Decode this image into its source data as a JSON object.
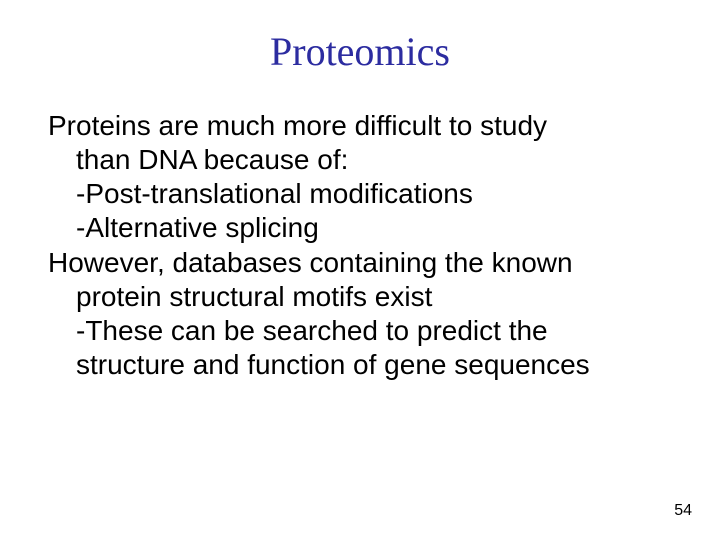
{
  "slide": {
    "title": "Proteomics",
    "title_color": "#2c2ca0",
    "title_fontsize": 40,
    "body_fontsize": 28,
    "body_color": "#000000",
    "background_color": "#ffffff",
    "lines": {
      "l1": "Proteins are much more difficult to study",
      "l2": "than DNA because of:",
      "l3": "-Post-translational modifications",
      "l4": "-Alternative splicing",
      "l5": "However, databases containing the known",
      "l6": "protein structural motifs exist",
      "l7": "-These can be searched to predict the",
      "l8": "structure and function of gene sequences"
    },
    "page_number": "54"
  }
}
